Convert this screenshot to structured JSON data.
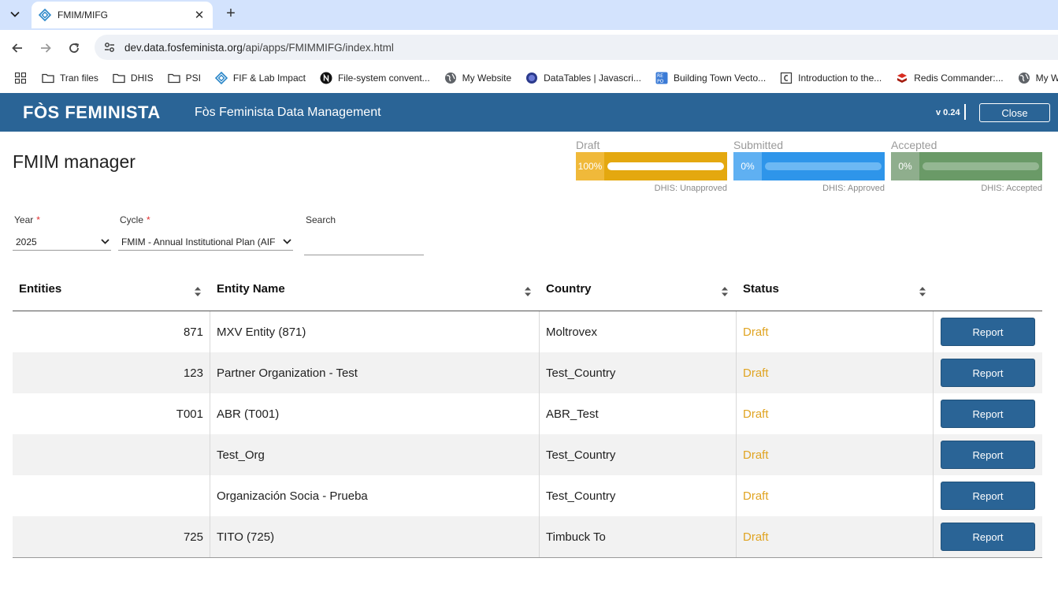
{
  "browser": {
    "tab_title": "FMIM/MIFG",
    "url_host": "dev.data.fosfeminista.org",
    "url_path": "/api/apps/FMIMMIFG/index.html",
    "bookmarks": [
      {
        "label": "Tran files",
        "icon": "folder-icon"
      },
      {
        "label": "DHIS",
        "icon": "folder-icon"
      },
      {
        "label": "PSI",
        "icon": "folder-icon"
      },
      {
        "label": "FIF & Lab Impact",
        "icon": "diamond-icon"
      },
      {
        "label": "File-system convent...",
        "icon": "n-logo-icon"
      },
      {
        "label": "My Website",
        "icon": "globe-icon"
      },
      {
        "label": "DataTables | Javascri...",
        "icon": "datatables-icon"
      },
      {
        "label": "Building Town Vecto...",
        "icon": "repo-icon"
      },
      {
        "label": "Introduction to the...",
        "icon": "doc-c-icon"
      },
      {
        "label": "Redis Commander:...",
        "icon": "redis-icon"
      },
      {
        "label": "My Web",
        "icon": "globe-icon"
      }
    ]
  },
  "header": {
    "logo": "FÒS FEMINISTA",
    "title": "Fòs Feminista Data Management",
    "version": "v 0.24",
    "close_label": "Close"
  },
  "page": {
    "title": "FMIM manager"
  },
  "status_cards": [
    {
      "label": "Draft",
      "percent_label": "100%",
      "fraction": 1.0,
      "footer": "DHIS: Unapproved",
      "color_pct": "#f0b93a",
      "color_track": "#e4a80f",
      "color_fill": "#ffffff",
      "color_rail": "#f3d27a"
    },
    {
      "label": "Submitted",
      "percent_label": "0%",
      "fraction": 0.0,
      "footer": "DHIS: Approved",
      "color_pct": "#5fb0f2",
      "color_track": "#2e95ea",
      "color_fill": "#ffffff",
      "color_rail": "#6cb8f4"
    },
    {
      "label": "Accepted",
      "percent_label": "0%",
      "fraction": 0.0,
      "footer": "DHIS: Accepted",
      "color_pct": "#8fae8d",
      "color_track": "#6a9a67",
      "color_fill": "#ffffff",
      "color_rail": "#94b792"
    }
  ],
  "filters": {
    "year_label": "Year",
    "year_value": "2025",
    "cycle_label": "Cycle",
    "cycle_value": "FMIM - Annual Institutional Plan (AIF",
    "search_label": "Search",
    "search_value": ""
  },
  "table": {
    "headers": [
      "Entities",
      "Entity Name",
      "Country",
      "Status"
    ],
    "action_label": "Report",
    "rows": [
      {
        "code": "871",
        "name": "MXV Entity (871)",
        "country": "Moltrovex",
        "status": "Draft"
      },
      {
        "code": "123",
        "name": "Partner Organization - Test",
        "country": "Test_Country",
        "status": "Draft"
      },
      {
        "code": "T001",
        "name": "ABR (T001)",
        "country": "ABR_Test",
        "status": "Draft"
      },
      {
        "code": "",
        "name": "Test_Org",
        "country": "Test_Country",
        "status": "Draft"
      },
      {
        "code": "",
        "name": "Organización Socia - Prueba",
        "country": "Test_Country",
        "status": "Draft"
      },
      {
        "code": "725",
        "name": "TITO (725)",
        "country": "Timbuck To",
        "status": "Draft"
      }
    ]
  }
}
